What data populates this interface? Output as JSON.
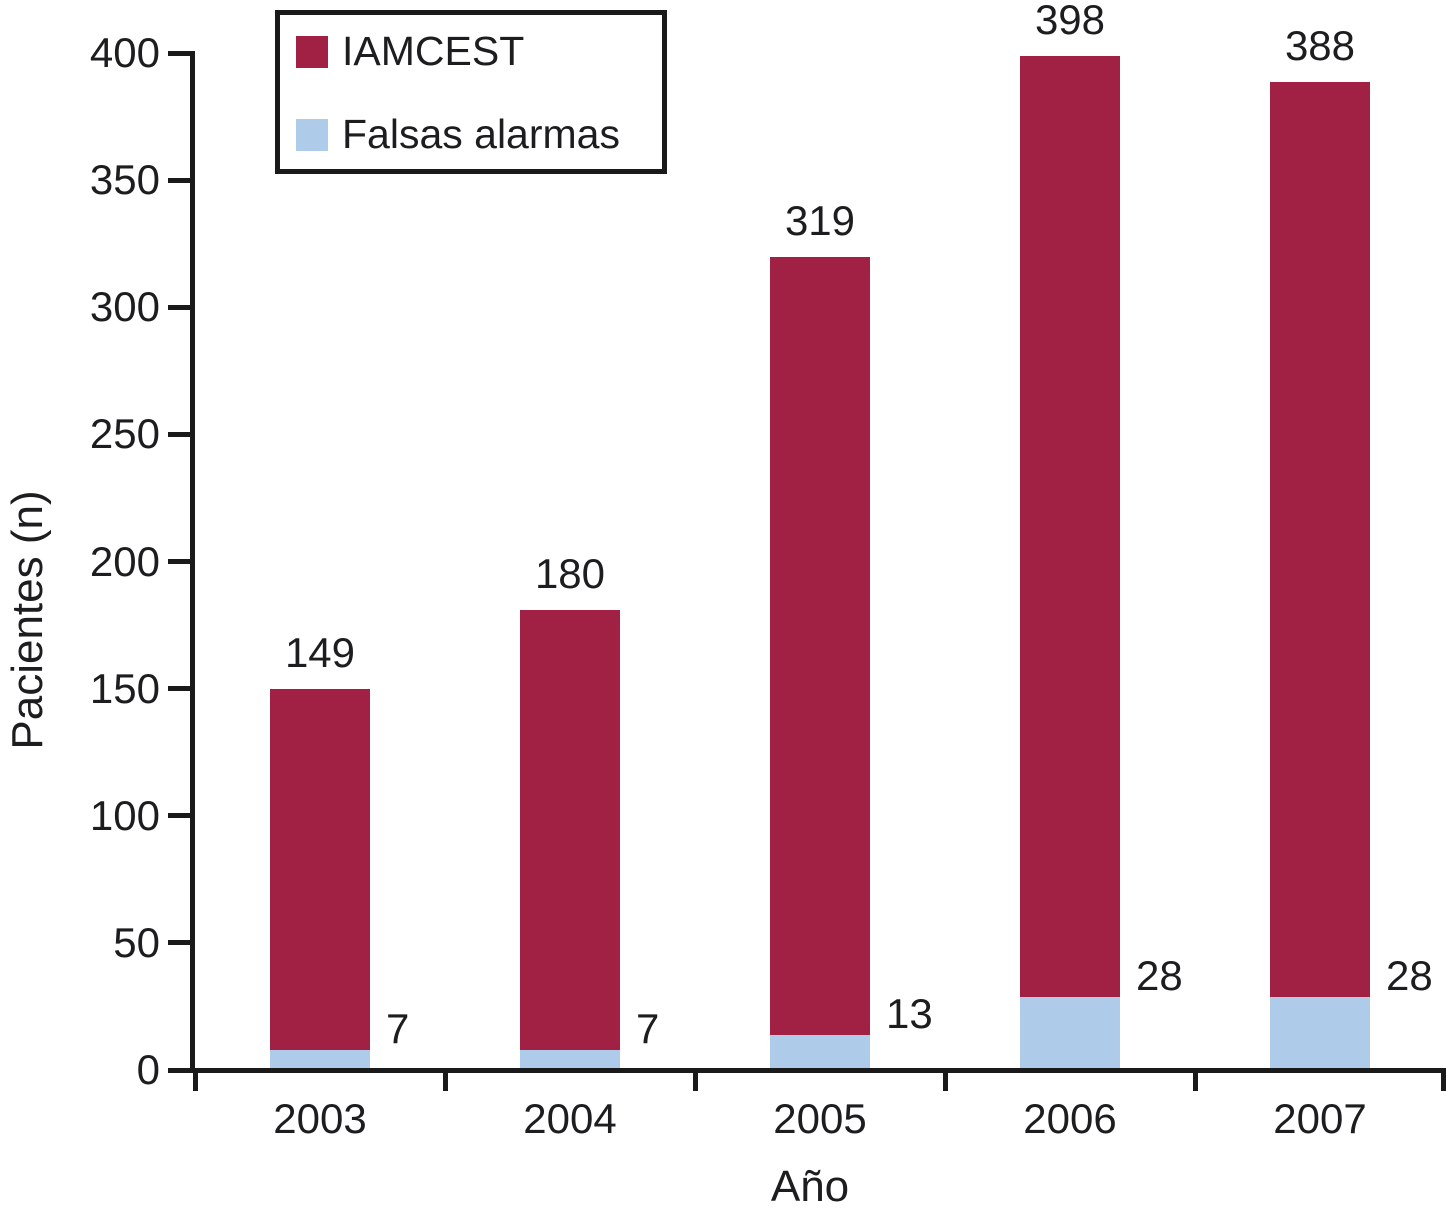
{
  "chart_data": {
    "type": "bar",
    "stacked": true,
    "categories": [
      "2003",
      "2004",
      "2005",
      "2006",
      "2007"
    ],
    "series": [
      {
        "name": "IAMCEST",
        "color": "#A02143",
        "values": [
          149,
          180,
          319,
          398,
          388
        ],
        "label_position": "above-bar",
        "represents": "stack-total"
      },
      {
        "name": "Falsas alarmas",
        "color": "#AECBE9",
        "values": [
          7,
          7,
          13,
          28,
          28
        ],
        "label_position": "right-of-bar",
        "represents": "bottom-segment"
      }
    ],
    "xlabel": "Año",
    "ylabel": "Pacientes (n)",
    "y_ticks": [
      0,
      50,
      100,
      150,
      200,
      250,
      300,
      350,
      400
    ],
    "ylim": [
      0,
      400
    ],
    "grid": false,
    "legend_position": "top-left",
    "x_tick_style": "between-categories",
    "axis_color": "#1A1A1A",
    "text_color": "#1D1D1F",
    "background_color": "#FFFFFF"
  }
}
